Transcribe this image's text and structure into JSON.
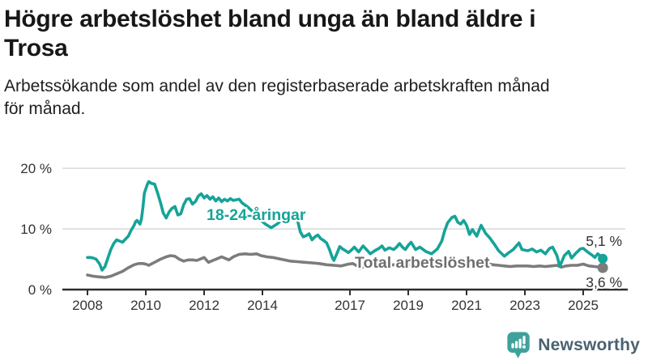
{
  "header": {
    "title_lines": [
      "Högre arbetslöshet bland unga än bland äldre i",
      "Trosa"
    ],
    "subtitle_lines": [
      "Arbetssökande som andel av den registerbaserade arbetskraften månad",
      "för månad."
    ]
  },
  "chart_data": {
    "type": "line",
    "unit": "%",
    "x_range": [
      2008,
      2025.67
    ],
    "ylim": [
      0,
      20
    ],
    "grid": true,
    "legend_position": "inline-labels",
    "y_ticks": [
      {
        "value": 0,
        "label": "0 %"
      },
      {
        "value": 10,
        "label": "10 %"
      },
      {
        "value": 20,
        "label": "20 %"
      }
    ],
    "x_ticks": [
      {
        "value": 2008,
        "label": "2008"
      },
      {
        "value": 2010,
        "label": "2010"
      },
      {
        "value": 2012,
        "label": "2012"
      },
      {
        "value": 2014,
        "label": "2014"
      },
      {
        "value": 2017,
        "label": "2017"
      },
      {
        "value": 2019,
        "label": "2019"
      },
      {
        "value": 2021,
        "label": "2021"
      },
      {
        "value": 2023,
        "label": "2023"
      },
      {
        "value": 2025,
        "label": "2025"
      }
    ],
    "series": [
      {
        "name": "Total arbetslöshet",
        "color": "#7c7c7c",
        "label_color": "#6f6f6f",
        "end_label": "3,6 %",
        "end_value": 3.6,
        "points": [
          [
            2008.0,
            2.4
          ],
          [
            2008.2,
            2.2
          ],
          [
            2008.4,
            2.1
          ],
          [
            2008.6,
            2.0
          ],
          [
            2008.8,
            2.2
          ],
          [
            2009.0,
            2.6
          ],
          [
            2009.2,
            3.0
          ],
          [
            2009.4,
            3.6
          ],
          [
            2009.6,
            4.1
          ],
          [
            2009.75,
            4.3
          ],
          [
            2009.9,
            4.3
          ],
          [
            2010.0,
            4.2
          ],
          [
            2010.1,
            4.0
          ],
          [
            2010.3,
            4.5
          ],
          [
            2010.5,
            5.0
          ],
          [
            2010.7,
            5.4
          ],
          [
            2010.85,
            5.6
          ],
          [
            2011.0,
            5.5
          ],
          [
            2011.15,
            5.0
          ],
          [
            2011.3,
            4.7
          ],
          [
            2011.45,
            4.9
          ],
          [
            2011.6,
            4.9
          ],
          [
            2011.75,
            4.8
          ],
          [
            2011.9,
            5.1
          ],
          [
            2012.0,
            5.3
          ],
          [
            2012.15,
            4.5
          ],
          [
            2012.3,
            4.8
          ],
          [
            2012.45,
            5.1
          ],
          [
            2012.6,
            5.4
          ],
          [
            2012.75,
            5.1
          ],
          [
            2012.85,
            4.9
          ],
          [
            2013.0,
            5.4
          ],
          [
            2013.2,
            5.8
          ],
          [
            2013.4,
            5.9
          ],
          [
            2013.6,
            5.8
          ],
          [
            2013.8,
            5.9
          ],
          [
            2013.95,
            5.6
          ],
          [
            2014.15,
            5.4
          ],
          [
            2014.35,
            5.3
          ],
          [
            2014.55,
            5.1
          ],
          [
            2014.75,
            4.9
          ],
          [
            2014.95,
            4.7
          ],
          [
            2015.2,
            4.6
          ],
          [
            2015.45,
            4.5
          ],
          [
            2015.7,
            4.4
          ],
          [
            2015.95,
            4.3
          ],
          [
            2016.2,
            4.1
          ],
          [
            2016.45,
            4.0
          ],
          [
            2016.7,
            3.9
          ],
          [
            2016.95,
            4.2
          ],
          [
            2017.1,
            4.3
          ],
          [
            2017.25,
            3.9
          ],
          [
            2017.35,
            3.5
          ],
          [
            2017.5,
            3.8
          ],
          [
            2017.7,
            4.1
          ],
          [
            2017.9,
            4.3
          ],
          [
            2018.1,
            4.2
          ],
          [
            2018.3,
            4.0
          ],
          [
            2018.5,
            4.1
          ],
          [
            2018.7,
            4.0
          ],
          [
            2018.9,
            4.1
          ],
          [
            2019.1,
            4.1
          ],
          [
            2019.3,
            4.0
          ],
          [
            2019.5,
            3.9
          ],
          [
            2019.7,
            4.0
          ],
          [
            2019.9,
            4.1
          ],
          [
            2020.1,
            4.2
          ],
          [
            2020.3,
            4.5
          ],
          [
            2020.5,
            4.8
          ],
          [
            2020.7,
            4.7
          ],
          [
            2020.9,
            4.8
          ],
          [
            2021.1,
            4.8
          ],
          [
            2021.3,
            4.6
          ],
          [
            2021.5,
            4.4
          ],
          [
            2021.7,
            4.3
          ],
          [
            2021.9,
            4.1
          ],
          [
            2022.1,
            4.0
          ],
          [
            2022.3,
            3.9
          ],
          [
            2022.5,
            3.8
          ],
          [
            2022.7,
            3.9
          ],
          [
            2022.9,
            3.9
          ],
          [
            2023.1,
            3.9
          ],
          [
            2023.3,
            3.8
          ],
          [
            2023.5,
            3.9
          ],
          [
            2023.7,
            3.8
          ],
          [
            2023.9,
            3.9
          ],
          [
            2024.1,
            4.0
          ],
          [
            2024.25,
            3.7
          ],
          [
            2024.4,
            3.9
          ],
          [
            2024.6,
            4.0
          ],
          [
            2024.8,
            4.0
          ],
          [
            2025.0,
            4.2
          ],
          [
            2025.2,
            3.9
          ],
          [
            2025.4,
            3.8
          ],
          [
            2025.67,
            3.6
          ]
        ]
      },
      {
        "name": "18-24-åringar",
        "color": "#16a398",
        "label_color": "#16a398",
        "end_label": "5,1 %",
        "end_value": 5.1,
        "points": [
          [
            2008.0,
            5.3
          ],
          [
            2008.1,
            5.3
          ],
          [
            2008.2,
            5.2
          ],
          [
            2008.3,
            5.0
          ],
          [
            2008.42,
            4.2
          ],
          [
            2008.5,
            3.2
          ],
          [
            2008.6,
            3.8
          ],
          [
            2008.7,
            5.2
          ],
          [
            2008.8,
            6.6
          ],
          [
            2008.9,
            7.6
          ],
          [
            2009.0,
            8.2
          ],
          [
            2009.1,
            8.0
          ],
          [
            2009.2,
            7.8
          ],
          [
            2009.3,
            8.3
          ],
          [
            2009.4,
            8.8
          ],
          [
            2009.5,
            9.8
          ],
          [
            2009.6,
            10.6
          ],
          [
            2009.65,
            11.2
          ],
          [
            2009.7,
            11.4
          ],
          [
            2009.8,
            10.8
          ],
          [
            2009.85,
            11.6
          ],
          [
            2009.9,
            13.5
          ],
          [
            2009.95,
            15.9
          ],
          [
            2010.05,
            17.3
          ],
          [
            2010.1,
            17.8
          ],
          [
            2010.2,
            17.5
          ],
          [
            2010.3,
            17.4
          ],
          [
            2010.4,
            16.0
          ],
          [
            2010.5,
            14.4
          ],
          [
            2010.6,
            12.6
          ],
          [
            2010.7,
            11.8
          ],
          [
            2010.8,
            12.8
          ],
          [
            2010.9,
            13.4
          ],
          [
            2011.0,
            13.7
          ],
          [
            2011.1,
            12.3
          ],
          [
            2011.2,
            12.5
          ],
          [
            2011.3,
            14.0
          ],
          [
            2011.4,
            14.9
          ],
          [
            2011.5,
            15.0
          ],
          [
            2011.6,
            14.1
          ],
          [
            2011.7,
            14.5
          ],
          [
            2011.8,
            15.4
          ],
          [
            2011.9,
            15.8
          ],
          [
            2012.0,
            15.1
          ],
          [
            2012.1,
            15.5
          ],
          [
            2012.2,
            14.9
          ],
          [
            2012.3,
            15.3
          ],
          [
            2012.4,
            14.6
          ],
          [
            2012.5,
            15.1
          ],
          [
            2012.6,
            14.5
          ],
          [
            2012.7,
            14.9
          ],
          [
            2012.8,
            14.6
          ],
          [
            2012.9,
            15.0
          ],
          [
            2013.0,
            14.7
          ],
          [
            2013.2,
            14.9
          ],
          [
            2013.3,
            14.3
          ],
          [
            2013.5,
            13.6
          ],
          [
            2013.7,
            12.7
          ],
          [
            2013.9,
            11.6
          ],
          [
            2014.1,
            10.8
          ],
          [
            2014.3,
            10.2
          ],
          [
            2014.5,
            10.8
          ],
          [
            2014.7,
            11.6
          ],
          [
            2014.9,
            12.2
          ],
          [
            2015.1,
            12.5
          ],
          [
            2015.2,
            11.5
          ],
          [
            2015.3,
            9.5
          ],
          [
            2015.4,
            8.7
          ],
          [
            2015.5,
            8.9
          ],
          [
            2015.6,
            9.2
          ],
          [
            2015.7,
            8.2
          ],
          [
            2015.8,
            8.7
          ],
          [
            2015.9,
            9.0
          ],
          [
            2016.0,
            8.4
          ],
          [
            2016.1,
            8.1
          ],
          [
            2016.2,
            7.7
          ],
          [
            2016.3,
            6.6
          ],
          [
            2016.4,
            5.2
          ],
          [
            2016.45,
            4.8
          ],
          [
            2016.55,
            5.9
          ],
          [
            2016.65,
            7.1
          ],
          [
            2016.75,
            6.7
          ],
          [
            2016.85,
            6.4
          ],
          [
            2016.95,
            6.1
          ],
          [
            2017.05,
            6.5
          ],
          [
            2017.15,
            7.0
          ],
          [
            2017.3,
            6.2
          ],
          [
            2017.45,
            7.2
          ],
          [
            2017.55,
            6.7
          ],
          [
            2017.7,
            5.9
          ],
          [
            2017.85,
            6.4
          ],
          [
            2018.0,
            6.8
          ],
          [
            2018.1,
            7.2
          ],
          [
            2018.2,
            6.5
          ],
          [
            2018.35,
            6.9
          ],
          [
            2018.5,
            6.6
          ],
          [
            2018.6,
            7.0
          ],
          [
            2018.7,
            7.6
          ],
          [
            2018.8,
            7.0
          ],
          [
            2018.9,
            6.6
          ],
          [
            2019.0,
            7.3
          ],
          [
            2019.1,
            7.8
          ],
          [
            2019.25,
            6.6
          ],
          [
            2019.4,
            7.0
          ],
          [
            2019.6,
            6.3
          ],
          [
            2019.8,
            5.9
          ],
          [
            2019.9,
            6.3
          ],
          [
            2020.0,
            6.7
          ],
          [
            2020.15,
            8.0
          ],
          [
            2020.25,
            9.7
          ],
          [
            2020.35,
            11.0
          ],
          [
            2020.5,
            11.9
          ],
          [
            2020.6,
            12.1
          ],
          [
            2020.7,
            11.1
          ],
          [
            2020.8,
            10.8
          ],
          [
            2020.9,
            11.4
          ],
          [
            2021.0,
            10.6
          ],
          [
            2021.1,
            9.1
          ],
          [
            2021.2,
            9.9
          ],
          [
            2021.35,
            8.8
          ],
          [
            2021.5,
            10.6
          ],
          [
            2021.65,
            9.3
          ],
          [
            2021.8,
            8.5
          ],
          [
            2021.95,
            7.5
          ],
          [
            2022.1,
            6.4
          ],
          [
            2022.3,
            5.5
          ],
          [
            2022.45,
            6.1
          ],
          [
            2022.6,
            6.6
          ],
          [
            2022.8,
            7.7
          ],
          [
            2022.9,
            6.6
          ],
          [
            2023.1,
            6.4
          ],
          [
            2023.25,
            6.7
          ],
          [
            2023.4,
            6.2
          ],
          [
            2023.55,
            6.5
          ],
          [
            2023.7,
            5.9
          ],
          [
            2023.85,
            6.8
          ],
          [
            2023.95,
            7.0
          ],
          [
            2024.1,
            5.6
          ],
          [
            2024.2,
            3.8
          ],
          [
            2024.35,
            5.6
          ],
          [
            2024.5,
            6.3
          ],
          [
            2024.6,
            5.2
          ],
          [
            2024.75,
            6.0
          ],
          [
            2024.9,
            6.7
          ],
          [
            2025.0,
            6.8
          ],
          [
            2025.15,
            6.2
          ],
          [
            2025.3,
            5.7
          ],
          [
            2025.4,
            5.3
          ],
          [
            2025.5,
            5.9
          ],
          [
            2025.6,
            5.5
          ],
          [
            2025.67,
            5.1
          ]
        ]
      }
    ]
  },
  "logo": {
    "text": "Newsworthy",
    "icon": "newsworthy-bubble-chart-icon",
    "icon_color": "#3fa19b",
    "text_color": "#4b6170"
  }
}
